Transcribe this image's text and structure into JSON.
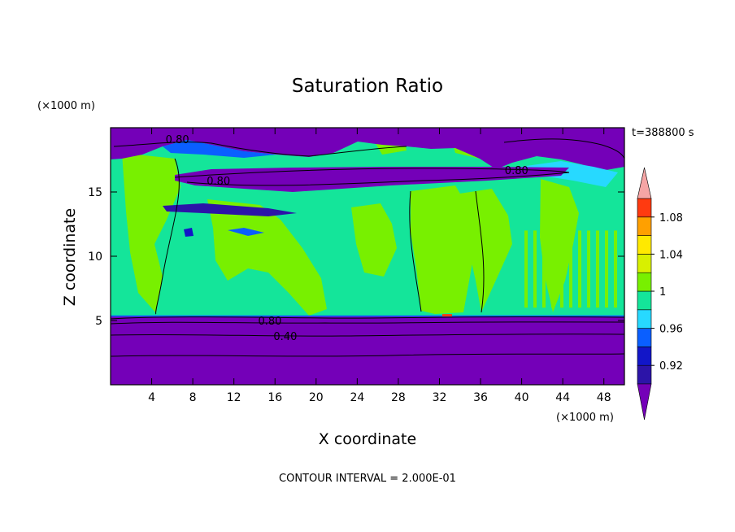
{
  "chart_data": {
    "type": "heatmap",
    "title": "Saturation Ratio",
    "xlabel": "X coordinate",
    "ylabel": "Z coordinate",
    "x_unit": "(×1000 m)",
    "y_unit": "(×1000 m)",
    "time_label": "t=388800 s",
    "footer": "CONTOUR INTERVAL = 2.000E-01",
    "xlim": [
      0,
      50
    ],
    "ylim": [
      0,
      20
    ],
    "x_ticks": [
      4,
      8,
      12,
      16,
      20,
      24,
      28,
      32,
      36,
      40,
      44,
      48
    ],
    "y_ticks": [
      5,
      10,
      15
    ],
    "contour_labels": [
      {
        "text": "0.80",
        "x": 6.5,
        "z": 19.1
      },
      {
        "text": "0.80",
        "x": 10.5,
        "z": 15.9
      },
      {
        "text": "0.80",
        "x": 39.5,
        "z": 16.7
      },
      {
        "text": "0.80",
        "x": 15.5,
        "z": 5.0
      },
      {
        "text": "0.40",
        "x": 17.0,
        "z": 3.8
      }
    ],
    "colorbar": {
      "levels": [
        0.9,
        0.92,
        0.94,
        0.96,
        0.98,
        1.0,
        1.02,
        1.04,
        1.06,
        1.08,
        1.1
      ],
      "tick_labels": [
        "0.92",
        "0.96",
        "1",
        "1.04",
        "1.08"
      ],
      "colors": [
        "#2c14a8",
        "#1216c8",
        "#0a5fff",
        "#27d9ff",
        "#14e59a",
        "#78f000",
        "#d8f000",
        "#ffe900",
        "#ffa000",
        "#ff3a10"
      ],
      "under_color": "#7400b8",
      "over_color": "#f5a5a5"
    },
    "regions": [
      {
        "name": "lower-dry-layer",
        "value": 0.6,
        "z_range": [
          0,
          5.3
        ],
        "color": "#7400b8"
      },
      {
        "name": "mid-moist-layer",
        "value": 0.99,
        "z_range": [
          5.3,
          17.8
        ],
        "color": "#14e59a"
      },
      {
        "name": "supersaturated-patches",
        "value": 1.01,
        "color": "#78f000"
      },
      {
        "name": "dry-band-16km",
        "value": 0.8,
        "z_range": [
          15.6,
          16.4
        ],
        "color": "#7400b8"
      },
      {
        "name": "upper-dry-layer",
        "value": 0.8,
        "z_range": [
          17.8,
          20
        ],
        "color": "#7400b8"
      }
    ]
  }
}
